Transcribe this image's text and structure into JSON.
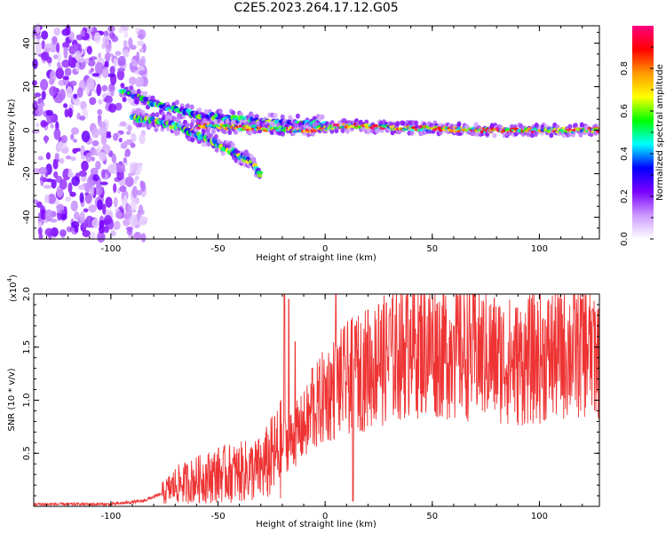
{
  "title": "C2E5.2023.264.17.12.G05",
  "chart_data": [
    {
      "type": "heatmap",
      "xlabel": "Height of straight line (km)",
      "ylabel": "Frequency (Hz)",
      "xlim": [
        -136,
        128
      ],
      "ylim": [
        -50,
        48
      ],
      "xticks": [
        -100,
        -50,
        0,
        50,
        100
      ],
      "yticks": [
        -40,
        -20,
        0,
        20,
        40
      ],
      "colorbar": {
        "label": "Normalized spectral amplitude",
        "range": [
          0,
          1
        ],
        "ticks": [
          "0.0",
          "0.2",
          "0.4",
          "0.6",
          "0.8"
        ],
        "colormap": [
          "#ffffff",
          "#cc99ff",
          "#7a00ff",
          "#0000ff",
          "#00ffff",
          "#00ff00",
          "#ffff00",
          "#ff9900",
          "#ff0000",
          "#ff0080"
        ]
      },
      "features": [
        {
          "name": "diffuse noise",
          "x_range": [
            -136,
            -90
          ],
          "freq_range": [
            -50,
            48
          ],
          "peak_amplitude": 0.2
        },
        {
          "name": "upper branch",
          "points": [
            [
              -95,
              18
            ],
            [
              -80,
              12
            ],
            [
              -60,
              7
            ],
            [
              -40,
              5
            ],
            [
              -20,
              3
            ],
            [
              0,
              3
            ]
          ],
          "peak_amplitude": 0.45
        },
        {
          "name": "descending branch",
          "points": [
            [
              -90,
              6
            ],
            [
              -70,
              2
            ],
            [
              -55,
              -4
            ],
            [
              -45,
              -9
            ],
            [
              -35,
              -14
            ],
            [
              -30,
              -21
            ]
          ],
          "peak_amplitude": 0.5
        },
        {
          "name": "main signal line",
          "points": [
            [
              -60,
              2
            ],
            [
              -30,
              1
            ],
            [
              -10,
              0
            ],
            [
              10,
              2
            ],
            [
              40,
              1
            ],
            [
              80,
              0
            ],
            [
              128,
              0
            ]
          ],
          "peak_amplitude": 1.0
        }
      ]
    },
    {
      "type": "line",
      "xlabel": "Height of straight line (km)",
      "ylabel": "SNR (10 * v/v)",
      "yscale_label": "(x10",
      "yscale_exponent": "4",
      "xlim": [
        -136,
        128
      ],
      "ylim": [
        0,
        2.0
      ],
      "xticks": [
        -100,
        -50,
        0,
        50,
        100
      ],
      "yticks": [
        "0.5",
        "1.0",
        "1.5",
        "2.0"
      ],
      "color": "#ee3333",
      "trend": [
        [
          -136,
          0.02
        ],
        [
          -100,
          0.02
        ],
        [
          -85,
          0.05
        ],
        [
          -76,
          0.12
        ],
        [
          -70,
          0.2
        ],
        [
          -60,
          0.25
        ],
        [
          -50,
          0.3
        ],
        [
          -40,
          0.32
        ],
        [
          -30,
          0.35
        ],
        [
          -25,
          0.45
        ],
        [
          -20,
          0.55
        ],
        [
          -15,
          0.65
        ],
        [
          -10,
          0.75
        ],
        [
          -5,
          0.9
        ],
        [
          0,
          1.05
        ],
        [
          10,
          1.2
        ],
        [
          20,
          1.3
        ],
        [
          30,
          1.4
        ],
        [
          40,
          1.5
        ],
        [
          50,
          1.5
        ],
        [
          60,
          1.45
        ],
        [
          70,
          1.45
        ],
        [
          80,
          1.4
        ],
        [
          90,
          1.35
        ],
        [
          100,
          1.4
        ],
        [
          110,
          1.45
        ],
        [
          120,
          1.5
        ],
        [
          128,
          1.45
        ]
      ],
      "spikes": [
        [
          -19,
          2.0
        ],
        [
          -17,
          1.95
        ],
        [
          -14,
          1.55
        ],
        [
          -6,
          1.3
        ],
        [
          5,
          2.0
        ],
        [
          13,
          0.05
        ],
        [
          14,
          1.7
        ],
        [
          20,
          1.85
        ],
        [
          25,
          1.9
        ],
        [
          30,
          1.8
        ],
        [
          40,
          1.85
        ],
        [
          60,
          1.7
        ],
        [
          120,
          1.95
        ],
        [
          125,
          1.85
        ]
      ]
    }
  ]
}
